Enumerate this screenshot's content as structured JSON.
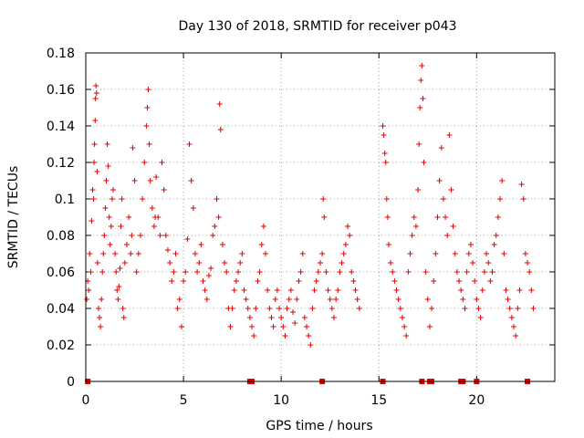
{
  "chart_data": {
    "type": "scatter",
    "title": "Day 130 of 2018, SRMTID for receiver p043",
    "xlabel": "GPS time / hours",
    "ylabel": "SRMTID / TECUs",
    "xlim": [
      0,
      24
    ],
    "ylim": [
      0,
      0.18
    ],
    "xticks": [
      0,
      5,
      10,
      15,
      20
    ],
    "yticks": [
      0,
      0.02,
      0.04,
      0.06,
      0.08,
      0.1,
      0.12,
      0.14,
      0.16,
      0.18
    ],
    "ytick_labels": [
      "0",
      "0.02",
      "0.04",
      "0.06",
      "0.08",
      "0.1",
      "0.12",
      "0.14",
      "0.16",
      "0.18"
    ],
    "marker": "+",
    "color": "#e00000",
    "grid": true,
    "data_gaps_hours": [
      [
        14.1,
        15.1
      ]
    ],
    "zero_value_x": [
      0.1,
      8.4,
      8.5,
      12.1,
      15.2,
      17.2,
      17.6,
      17.7,
      19.2,
      19.3,
      20.0,
      22.6
    ],
    "points": [
      [
        0.05,
        0.045
      ],
      [
        0.1,
        0.055
      ],
      [
        0.15,
        0.05
      ],
      [
        0.2,
        0.07
      ],
      [
        0.25,
        0.06
      ],
      [
        0.3,
        0.088
      ],
      [
        0.35,
        0.105
      ],
      [
        0.4,
        0.1
      ],
      [
        0.42,
        0.12
      ],
      [
        0.45,
        0.13
      ],
      [
        0.48,
        0.143
      ],
      [
        0.5,
        0.155
      ],
      [
        0.52,
        0.162
      ],
      [
        0.55,
        0.158
      ],
      [
        0.58,
        0.115
      ],
      [
        0.6,
        0.065
      ],
      [
        0.65,
        0.04
      ],
      [
        0.7,
        0.035
      ],
      [
        0.75,
        0.03
      ],
      [
        0.8,
        0.045
      ],
      [
        0.85,
        0.06
      ],
      [
        0.9,
        0.07
      ],
      [
        0.95,
        0.08
      ],
      [
        1.0,
        0.095
      ],
      [
        1.05,
        0.11
      ],
      [
        1.1,
        0.13
      ],
      [
        1.15,
        0.118
      ],
      [
        1.2,
        0.09
      ],
      [
        1.25,
        0.075
      ],
      [
        1.3,
        0.085
      ],
      [
        1.35,
        0.1
      ],
      [
        1.4,
        0.105
      ],
      [
        1.5,
        0.07
      ],
      [
        1.55,
        0.06
      ],
      [
        1.6,
        0.05
      ],
      [
        1.65,
        0.045
      ],
      [
        1.7,
        0.052
      ],
      [
        1.75,
        0.062
      ],
      [
        1.8,
        0.085
      ],
      [
        1.85,
        0.1
      ],
      [
        1.9,
        0.04
      ],
      [
        1.95,
        0.035
      ],
      [
        2.0,
        0.065
      ],
      [
        2.1,
        0.075
      ],
      [
        2.2,
        0.09
      ],
      [
        2.3,
        0.07
      ],
      [
        2.35,
        0.08
      ],
      [
        2.4,
        0.128
      ],
      [
        2.5,
        0.11
      ],
      [
        2.6,
        0.06
      ],
      [
        2.7,
        0.07
      ],
      [
        2.8,
        0.08
      ],
      [
        2.9,
        0.1
      ],
      [
        3.0,
        0.12
      ],
      [
        3.1,
        0.14
      ],
      [
        3.15,
        0.15
      ],
      [
        3.2,
        0.16
      ],
      [
        3.25,
        0.13
      ],
      [
        3.3,
        0.11
      ],
      [
        3.4,
        0.095
      ],
      [
        3.5,
        0.085
      ],
      [
        3.55,
        0.09
      ],
      [
        3.6,
        0.112
      ],
      [
        3.7,
        0.09
      ],
      [
        3.8,
        0.08
      ],
      [
        3.9,
        0.12
      ],
      [
        4.0,
        0.105
      ],
      [
        4.1,
        0.08
      ],
      [
        4.2,
        0.072
      ],
      [
        4.3,
        0.065
      ],
      [
        4.4,
        0.055
      ],
      [
        4.5,
        0.06
      ],
      [
        4.6,
        0.07
      ],
      [
        4.7,
        0.04
      ],
      [
        4.8,
        0.045
      ],
      [
        4.9,
        0.03
      ],
      [
        5.0,
        0.055
      ],
      [
        5.1,
        0.06
      ],
      [
        5.2,
        0.078
      ],
      [
        5.3,
        0.13
      ],
      [
        5.4,
        0.11
      ],
      [
        5.5,
        0.095
      ],
      [
        5.6,
        0.07
      ],
      [
        5.7,
        0.06
      ],
      [
        5.8,
        0.065
      ],
      [
        5.9,
        0.075
      ],
      [
        6.0,
        0.055
      ],
      [
        6.1,
        0.05
      ],
      [
        6.2,
        0.045
      ],
      [
        6.3,
        0.058
      ],
      [
        6.4,
        0.062
      ],
      [
        6.5,
        0.08
      ],
      [
        6.6,
        0.085
      ],
      [
        6.7,
        0.1
      ],
      [
        6.8,
        0.09
      ],
      [
        6.85,
        0.152
      ],
      [
        6.9,
        0.138
      ],
      [
        7.0,
        0.075
      ],
      [
        7.1,
        0.065
      ],
      [
        7.2,
        0.06
      ],
      [
        7.3,
        0.04
      ],
      [
        7.4,
        0.03
      ],
      [
        7.5,
        0.04
      ],
      [
        7.6,
        0.05
      ],
      [
        7.7,
        0.055
      ],
      [
        7.8,
        0.06
      ],
      [
        7.9,
        0.065
      ],
      [
        8.0,
        0.07
      ],
      [
        8.1,
        0.05
      ],
      [
        8.2,
        0.045
      ],
      [
        8.3,
        0.04
      ],
      [
        8.4,
        0.035
      ],
      [
        8.5,
        0.03
      ],
      [
        8.6,
        0.025
      ],
      [
        8.7,
        0.04
      ],
      [
        8.8,
        0.055
      ],
      [
        8.9,
        0.06
      ],
      [
        9.0,
        0.075
      ],
      [
        9.1,
        0.085
      ],
      [
        9.2,
        0.07
      ],
      [
        9.3,
        0.05
      ],
      [
        9.4,
        0.04
      ],
      [
        9.5,
        0.035
      ],
      [
        9.6,
        0.03
      ],
      [
        9.7,
        0.045
      ],
      [
        9.8,
        0.05
      ],
      [
        9.9,
        0.04
      ],
      [
        10.0,
        0.035
      ],
      [
        10.1,
        0.03
      ],
      [
        10.2,
        0.025
      ],
      [
        10.3,
        0.04
      ],
      [
        10.4,
        0.045
      ],
      [
        10.5,
        0.05
      ],
      [
        10.6,
        0.038
      ],
      [
        10.7,
        0.032
      ],
      [
        10.8,
        0.045
      ],
      [
        10.9,
        0.055
      ],
      [
        11.0,
        0.06
      ],
      [
        11.1,
        0.07
      ],
      [
        11.2,
        0.035
      ],
      [
        11.3,
        0.03
      ],
      [
        11.4,
        0.025
      ],
      [
        11.5,
        0.02
      ],
      [
        11.6,
        0.04
      ],
      [
        11.7,
        0.05
      ],
      [
        11.8,
        0.055
      ],
      [
        11.9,
        0.06
      ],
      [
        12.0,
        0.065
      ],
      [
        12.1,
        0.07
      ],
      [
        12.15,
        0.1
      ],
      [
        12.2,
        0.09
      ],
      [
        12.3,
        0.06
      ],
      [
        12.4,
        0.05
      ],
      [
        12.5,
        0.045
      ],
      [
        12.6,
        0.04
      ],
      [
        12.7,
        0.035
      ],
      [
        12.8,
        0.045
      ],
      [
        12.9,
        0.05
      ],
      [
        13.0,
        0.06
      ],
      [
        13.1,
        0.065
      ],
      [
        13.2,
        0.07
      ],
      [
        13.3,
        0.075
      ],
      [
        13.4,
        0.085
      ],
      [
        13.5,
        0.08
      ],
      [
        13.6,
        0.06
      ],
      [
        13.7,
        0.055
      ],
      [
        13.8,
        0.05
      ],
      [
        13.9,
        0.045
      ],
      [
        14.0,
        0.04
      ],
      [
        15.2,
        0.14
      ],
      [
        15.25,
        0.135
      ],
      [
        15.3,
        0.125
      ],
      [
        15.35,
        0.12
      ],
      [
        15.4,
        0.1
      ],
      [
        15.45,
        0.09
      ],
      [
        15.5,
        0.075
      ],
      [
        15.6,
        0.065
      ],
      [
        15.7,
        0.06
      ],
      [
        15.8,
        0.055
      ],
      [
        15.9,
        0.05
      ],
      [
        16.0,
        0.045
      ],
      [
        16.1,
        0.04
      ],
      [
        16.2,
        0.035
      ],
      [
        16.3,
        0.03
      ],
      [
        16.4,
        0.025
      ],
      [
        16.5,
        0.06
      ],
      [
        16.6,
        0.07
      ],
      [
        16.7,
        0.08
      ],
      [
        16.8,
        0.09
      ],
      [
        16.9,
        0.085
      ],
      [
        17.0,
        0.105
      ],
      [
        17.05,
        0.13
      ],
      [
        17.1,
        0.15
      ],
      [
        17.15,
        0.165
      ],
      [
        17.2,
        0.173
      ],
      [
        17.25,
        0.155
      ],
      [
        17.3,
        0.12
      ],
      [
        17.4,
        0.06
      ],
      [
        17.5,
        0.045
      ],
      [
        17.6,
        0.03
      ],
      [
        17.7,
        0.04
      ],
      [
        17.8,
        0.055
      ],
      [
        17.9,
        0.07
      ],
      [
        18.0,
        0.09
      ],
      [
        18.1,
        0.11
      ],
      [
        18.2,
        0.128
      ],
      [
        18.3,
        0.1
      ],
      [
        18.4,
        0.09
      ],
      [
        18.5,
        0.08
      ],
      [
        18.6,
        0.135
      ],
      [
        18.7,
        0.105
      ],
      [
        18.8,
        0.085
      ],
      [
        18.9,
        0.07
      ],
      [
        19.0,
        0.06
      ],
      [
        19.1,
        0.055
      ],
      [
        19.2,
        0.05
      ],
      [
        19.3,
        0.045
      ],
      [
        19.4,
        0.04
      ],
      [
        19.5,
        0.06
      ],
      [
        19.6,
        0.07
      ],
      [
        19.7,
        0.075
      ],
      [
        19.8,
        0.065
      ],
      [
        19.9,
        0.055
      ],
      [
        20.0,
        0.045
      ],
      [
        20.1,
        0.04
      ],
      [
        20.2,
        0.035
      ],
      [
        20.3,
        0.05
      ],
      [
        20.4,
        0.06
      ],
      [
        20.5,
        0.07
      ],
      [
        20.6,
        0.065
      ],
      [
        20.7,
        0.055
      ],
      [
        20.8,
        0.06
      ],
      [
        20.9,
        0.075
      ],
      [
        21.0,
        0.08
      ],
      [
        21.1,
        0.09
      ],
      [
        21.2,
        0.1
      ],
      [
        21.3,
        0.11
      ],
      [
        21.4,
        0.07
      ],
      [
        21.5,
        0.05
      ],
      [
        21.6,
        0.045
      ],
      [
        21.7,
        0.04
      ],
      [
        21.8,
        0.035
      ],
      [
        21.9,
        0.03
      ],
      [
        22.0,
        0.025
      ],
      [
        22.1,
        0.04
      ],
      [
        22.2,
        0.05
      ],
      [
        22.3,
        0.108
      ],
      [
        22.4,
        0.1
      ],
      [
        22.5,
        0.07
      ],
      [
        22.6,
        0.065
      ],
      [
        22.7,
        0.06
      ],
      [
        22.8,
        0.05
      ],
      [
        22.9,
        0.04
      ]
    ]
  }
}
